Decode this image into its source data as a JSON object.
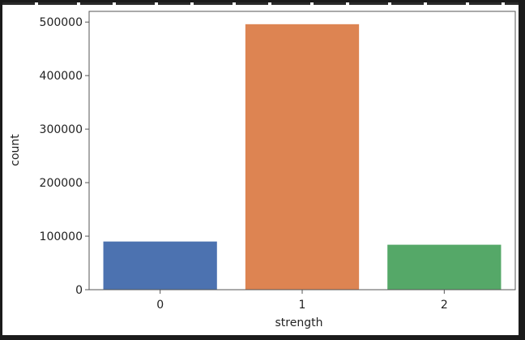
{
  "chart_data": {
    "type": "bar",
    "title": "",
    "xlabel": "strength",
    "ylabel": "count",
    "categories": [
      "0",
      "1",
      "2"
    ],
    "values": [
      90000,
      496000,
      84000
    ],
    "colors": [
      "#4c72b0",
      "#dd8452",
      "#55a868"
    ],
    "ylim": [
      0,
      520000
    ],
    "yticks": [
      0,
      100000,
      200000,
      300000,
      400000,
      500000
    ],
    "ytick_labels": [
      "0",
      "100000",
      "200000",
      "300000",
      "400000",
      "500000"
    ],
    "grid": false
  }
}
